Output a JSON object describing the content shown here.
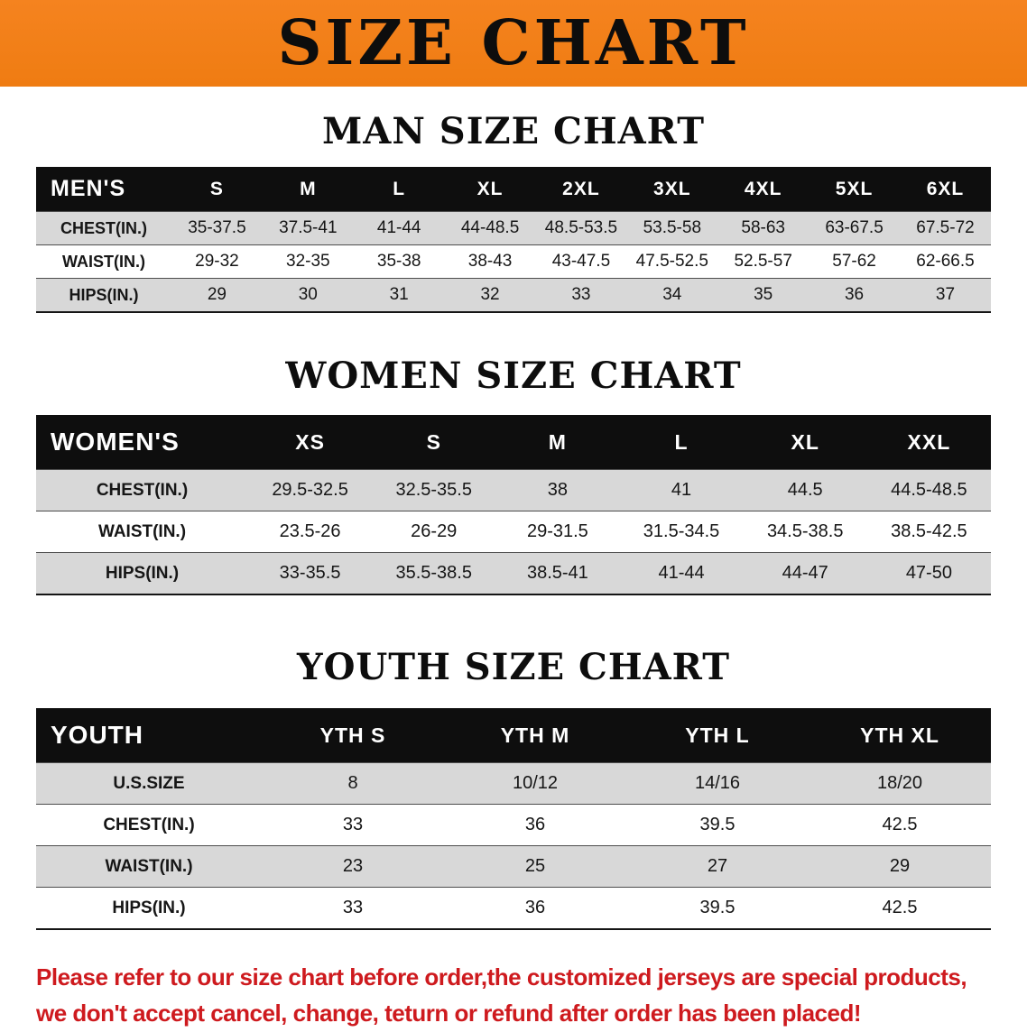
{
  "banner": {
    "title": "SIZE CHART"
  },
  "colors": {
    "banner_bg": "#f5831f",
    "header_bg": "#0e0e0e",
    "stripe": "#d8d8d8",
    "disclaimer_red": "#ce1a1e"
  },
  "chart_data": [
    {
      "type": "table",
      "title": "MAN SIZE CHART",
      "columns": [
        "MEN'S",
        "S",
        "M",
        "L",
        "XL",
        "2XL",
        "3XL",
        "4XL",
        "5XL",
        "6XL"
      ],
      "rows": [
        {
          "label": "CHEST(IN.)",
          "values": [
            "35-37.5",
            "37.5-41",
            "41-44",
            "44-48.5",
            "48.5-53.5",
            "53.5-58",
            "58-63",
            "63-67.5",
            "67.5-72"
          ]
        },
        {
          "label": "WAIST(IN.)",
          "values": [
            "29-32",
            "32-35",
            "35-38",
            "38-43",
            "43-47.5",
            "47.5-52.5",
            "52.5-57",
            "57-62",
            "62-66.5"
          ]
        },
        {
          "label": "HIPS(IN.)",
          "values": [
            "29",
            "30",
            "31",
            "32",
            "33",
            "34",
            "35",
            "36",
            "37"
          ]
        }
      ]
    },
    {
      "type": "table",
      "title": "WOMEN SIZE CHART",
      "columns": [
        "WOMEN'S",
        "XS",
        "S",
        "M",
        "L",
        "XL",
        "XXL"
      ],
      "rows": [
        {
          "label": "CHEST(IN.)",
          "values": [
            "29.5-32.5",
            "32.5-35.5",
            "38",
            "41",
            "44.5",
            "44.5-48.5"
          ]
        },
        {
          "label": "WAIST(IN.)",
          "values": [
            "23.5-26",
            "26-29",
            "29-31.5",
            "31.5-34.5",
            "34.5-38.5",
            "38.5-42.5"
          ]
        },
        {
          "label": "HIPS(IN.)",
          "values": [
            "33-35.5",
            "35.5-38.5",
            "38.5-41",
            "41-44",
            "44-47",
            "47-50"
          ]
        }
      ]
    },
    {
      "type": "table",
      "title": "YOUTH SIZE CHART",
      "columns": [
        "YOUTH",
        "YTH S",
        "YTH M",
        "YTH L",
        "YTH XL"
      ],
      "rows": [
        {
          "label": "U.S.SIZE",
          "values": [
            "8",
            "10/12",
            "14/16",
            "18/20"
          ]
        },
        {
          "label": "CHEST(IN.)",
          "values": [
            "33",
            "36",
            "39.5",
            "42.5"
          ]
        },
        {
          "label": "WAIST(IN.)",
          "values": [
            "23",
            "25",
            "27",
            "29"
          ]
        },
        {
          "label": "HIPS(IN.)",
          "values": [
            "33",
            "36",
            "39.5",
            "42.5"
          ]
        }
      ]
    }
  ],
  "disclaimer": {
    "line1": "Please refer to our size chart before order,the customized jerseys are special products,",
    "line2": "we don't accept cancel, change, teturn or refund after order has been placed!"
  }
}
